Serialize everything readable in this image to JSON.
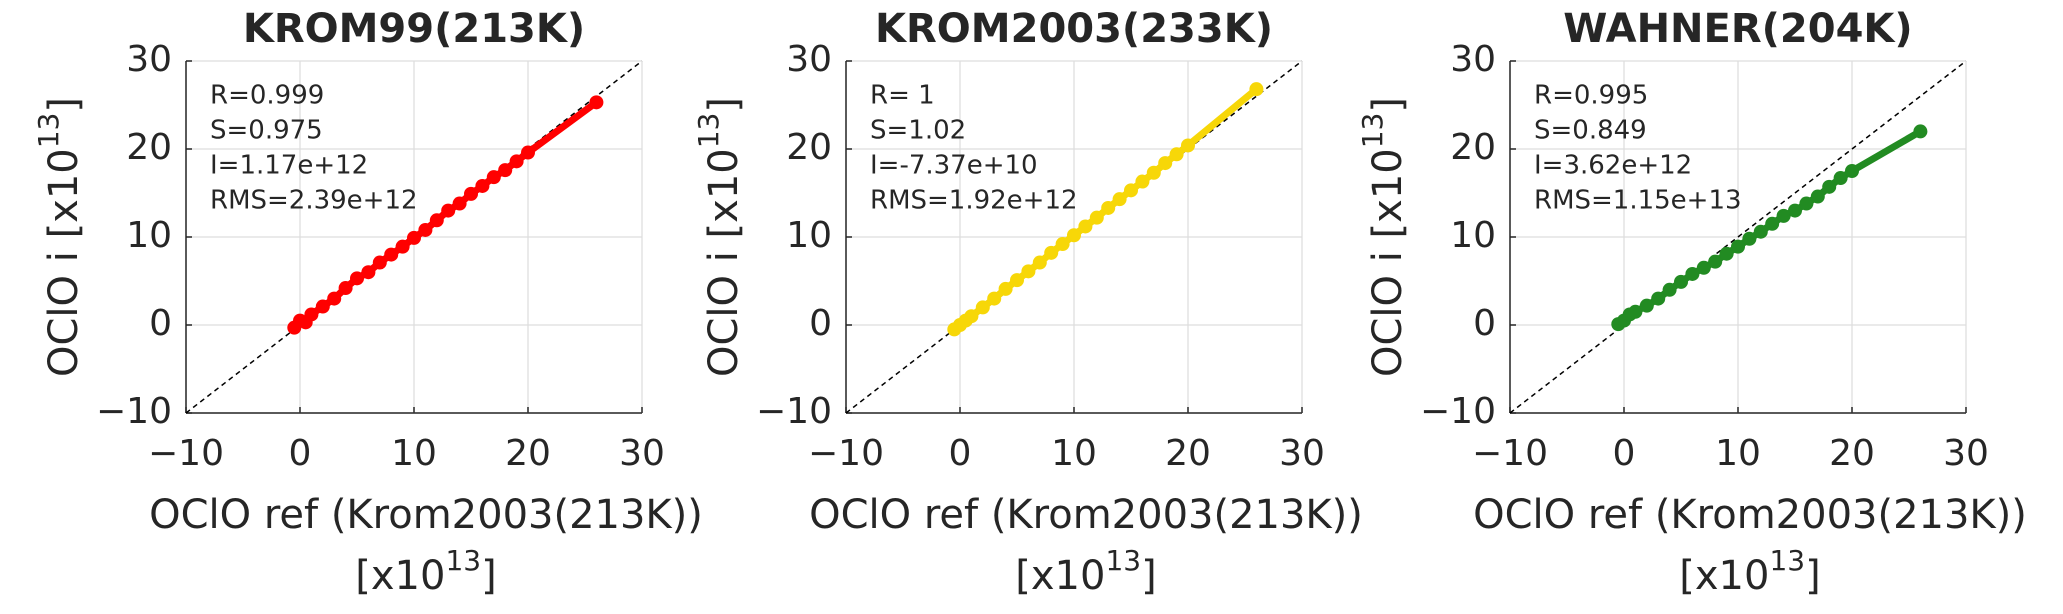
{
  "chart_data": [
    {
      "type": "scatter",
      "title": "KROM99(213K)",
      "annotations": [
        "R=0.999",
        "S=0.975",
        "I=1.17e+12",
        "RMS=2.39e+12"
      ],
      "xlabel": [
        "OClO ref (Krom2003(213K))",
        "[x10",
        "13",
        "]"
      ],
      "ylabel": [
        "OClO i [x10",
        "13",
        "]"
      ],
      "xlim": [
        -10,
        30
      ],
      "ylim": [
        -10,
        30
      ],
      "xticks": [
        {
          "value": -10,
          "label": "−10"
        },
        0,
        10,
        20,
        30
      ],
      "yticks": [
        {
          "value": -10,
          "label": "−10"
        },
        0,
        10,
        20,
        30
      ],
      "grid": true,
      "series": [
        {
          "color": "#ff0000",
          "x": [
            -0.5,
            0,
            0.5,
            1,
            2,
            3,
            4,
            5,
            6,
            7,
            8,
            9,
            10,
            11,
            12,
            13,
            14,
            15,
            16,
            17,
            18,
            19,
            20,
            26
          ],
          "values": [
            -0.3,
            0.5,
            0.3,
            1.2,
            2.1,
            3.0,
            4.2,
            5.3,
            6.0,
            7.1,
            8.0,
            8.9,
            9.9,
            10.8,
            11.9,
            13.0,
            13.8,
            14.9,
            15.8,
            16.8,
            17.6,
            18.6,
            19.6,
            25.3
          ]
        }
      ]
    },
    {
      "type": "scatter",
      "title": "KROM2003(233K)",
      "annotations": [
        "R= 1",
        "S=1.02",
        "I=-7.37e+10",
        "RMS=1.92e+12"
      ],
      "xlabel": [
        "OClO ref (Krom2003(213K))",
        "[x10",
        "13",
        "]"
      ],
      "ylabel": [
        "OClO i [x10",
        "13",
        "]"
      ],
      "xlim": [
        -10,
        30
      ],
      "ylim": [
        -10,
        30
      ],
      "xticks": [
        {
          "value": -10,
          "label": "−10"
        },
        0,
        10,
        20,
        30
      ],
      "yticks": [
        {
          "value": -10,
          "label": "−10"
        },
        0,
        10,
        20,
        30
      ],
      "grid": true,
      "series": [
        {
          "color": "#f7d708",
          "x": [
            -0.5,
            0,
            0.5,
            1,
            2,
            3,
            4,
            5,
            6,
            7,
            8,
            9,
            10,
            11,
            12,
            13,
            14,
            15,
            16,
            17,
            18,
            19,
            20,
            26
          ],
          "values": [
            -0.5,
            0,
            0.5,
            1,
            2,
            3,
            4.1,
            5.1,
            6.1,
            7.1,
            8.2,
            9.2,
            10.2,
            11.2,
            12.2,
            13.3,
            14.3,
            15.3,
            16.3,
            17.3,
            18.4,
            19.4,
            20.4,
            26.8
          ]
        }
      ]
    },
    {
      "type": "scatter",
      "title": "WAHNER(204K)",
      "annotations": [
        "R=0.995",
        "S=0.849",
        "I=3.62e+12",
        "RMS=1.15e+13"
      ],
      "xlabel": [
        "OClO ref (Krom2003(213K))",
        "[x10",
        "13",
        "]"
      ],
      "ylabel": [
        "OClO i [x10",
        "13",
        "]"
      ],
      "xlim": [
        -10,
        30
      ],
      "ylim": [
        -10,
        30
      ],
      "xticks": [
        {
          "value": -10,
          "label": "−10"
        },
        0,
        10,
        20,
        30
      ],
      "yticks": [
        {
          "value": -10,
          "label": "−10"
        },
        0,
        10,
        20,
        30
      ],
      "grid": true,
      "series": [
        {
          "color": "#228b22",
          "x": [
            -0.5,
            0,
            0.5,
            1,
            2,
            3,
            4,
            5,
            6,
            7,
            8,
            9,
            10,
            11,
            12,
            13,
            14,
            15,
            16,
            17,
            18,
            19,
            20,
            26
          ],
          "values": [
            0.1,
            0.5,
            1.2,
            1.5,
            2.2,
            3.0,
            4.0,
            4.9,
            5.8,
            6.5,
            7.2,
            8.1,
            8.9,
            9.8,
            10.6,
            11.5,
            12.4,
            13.0,
            13.8,
            14.6,
            15.7,
            16.7,
            17.5,
            22.0
          ]
        }
      ]
    }
  ]
}
